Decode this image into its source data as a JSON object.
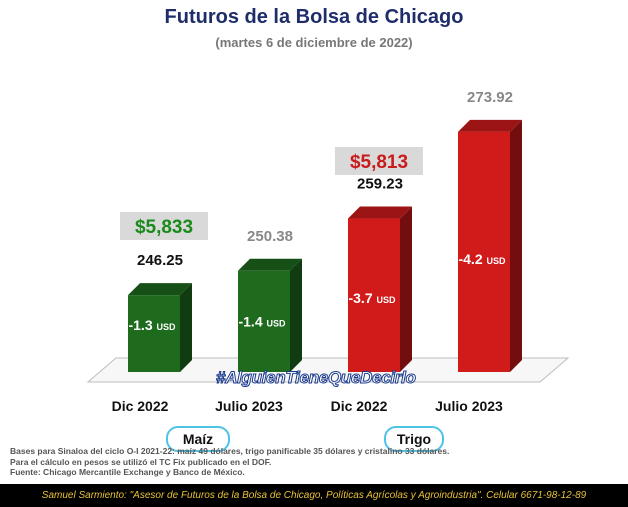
{
  "title": "Futuros de la Bolsa de Chicago",
  "subtitle": "(martes 6 de diciembre de 2022)",
  "chart_data": {
    "type": "bar",
    "categories": [
      "Dic 2022",
      "Julio 2023",
      "Dic 2022",
      "Julio 2023"
    ],
    "groups": [
      {
        "name": "Maíz",
        "categories": [
          "Dic 2022",
          "Julio 2023"
        ],
        "color": "#1e6b1e",
        "peso_price": "$5,833",
        "peso_color": "#1a8a1a"
      },
      {
        "name": "Trigo",
        "categories": [
          "Dic 2022",
          "Julio 2023"
        ],
        "color": "#d11a1a",
        "peso_price": "$5,813",
        "peso_color": "#c91b1b"
      }
    ],
    "values": [
      246.25,
      250.38,
      259.23,
      273.92
    ],
    "value_labels": [
      "246.25",
      "250.38",
      "259.23",
      "273.92"
    ],
    "value_label_colors": [
      "#111111",
      "#888888",
      "#111111",
      "#888888"
    ],
    "changes": [
      "-1.3",
      "-1.4",
      "-3.7",
      "-4.2"
    ],
    "change_unit": "USD",
    "bar_colors": [
      "#1e6b1e",
      "#1e6b1e",
      "#d11a1a",
      "#d11a1a"
    ],
    "xlabel": "",
    "ylabel": ""
  },
  "hashtag": "#AlguienTieneQueDecirlo",
  "notes": [
    "Bases para Sinaloa del ciclo O-I 2021-22: maíz 49 dólares, trigo panificable 35 dólares y cristalino 33 dólares.",
    "Para el cálculo en pesos se utilizó el TC Fix publicado en el DOF.",
    "Fuente: Chicago Mercantile Exchange y Banco de México."
  ],
  "footer": "Samuel Sarmiento: \"Asesor de Futuros de la Bolsa de Chicago, Políticas Agrícolas y Agroindustria\". Celular 6671-98-12-89"
}
